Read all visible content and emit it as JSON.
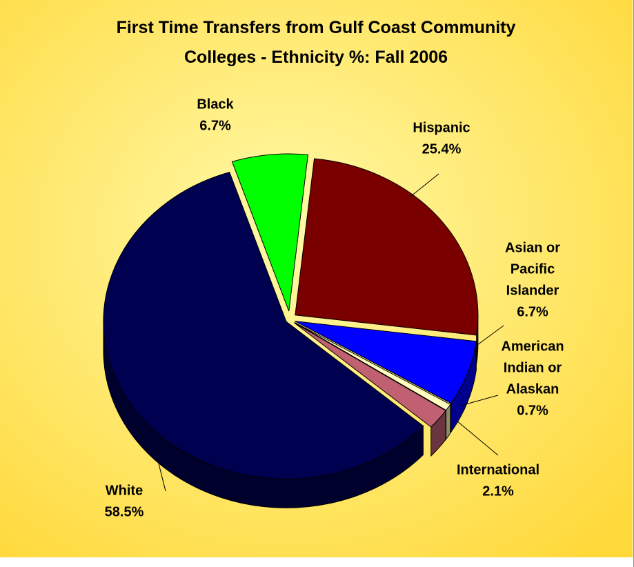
{
  "chart_data": {
    "type": "pie",
    "title_lines": [
      "First Time Transfers from Gulf Coast Community",
      "Colleges - Ethnicity %:  Fall 2006"
    ],
    "categories": [
      "Hispanic",
      "Asian or Pacific Islander",
      "American Indian or Alaskan",
      "International",
      "White",
      "Black"
    ],
    "values": [
      25.4,
      6.7,
      0.7,
      2.1,
      58.5,
      6.7
    ],
    "value_labels": [
      "25.4%",
      "6.7%",
      "0.7%",
      "2.1%",
      "58.5%",
      "6.7%"
    ],
    "label_lines": [
      [
        "Hispanic",
        "25.4%"
      ],
      [
        "Asian or",
        "Pacific",
        "Islander",
        "6.7%"
      ],
      [
        "American",
        "Indian or",
        "Alaskan",
        "0.7%"
      ],
      [
        "International",
        "2.1%"
      ],
      [
        "White",
        "58.5%"
      ],
      [
        "Black",
        "6.7%"
      ]
    ],
    "colors": [
      "#7a0000",
      "#0000ff",
      "#ffffc0",
      "#c06070",
      "#000050",
      "#00ff00"
    ],
    "background": {
      "inner_color": "#fff9a8",
      "outer_color": "#ffd93a"
    },
    "legend": "none",
    "style": "3d-exploded"
  }
}
